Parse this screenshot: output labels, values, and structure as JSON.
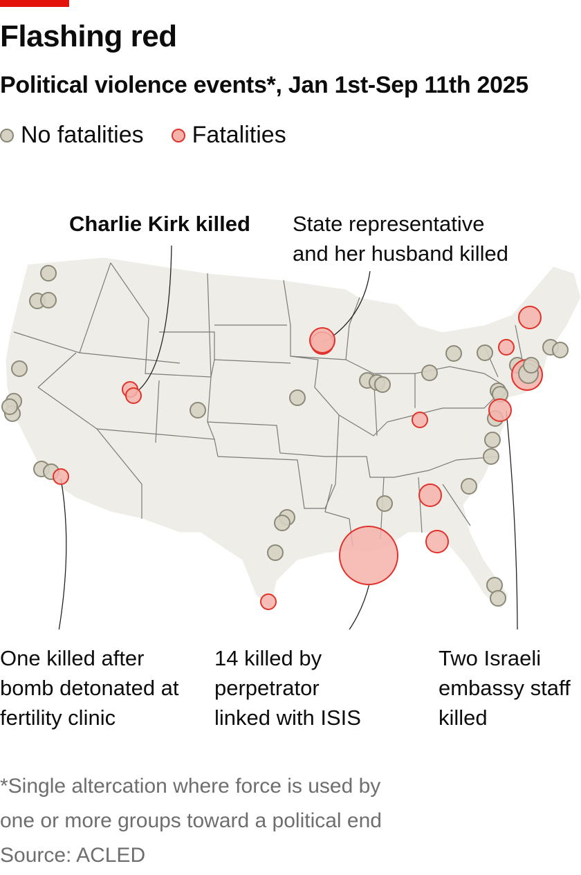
{
  "header": {
    "title": "Flashing red",
    "subtitle": "Political violence events*, Jan 1st-Sep 11th 2025"
  },
  "legend": {
    "no_fatalities": "No fatalities",
    "fatalities": "Fatalities"
  },
  "colors": {
    "accent": "#e3120b",
    "no_fatalities_fill": "#d5d1c3",
    "no_fatalities_stroke": "#8b8878",
    "fatalities_fill": "#f5b3aa",
    "fatalities_stroke": "#e0322b",
    "land": "#efede7",
    "borders": "#7a7a7a"
  },
  "annotations": {
    "charlie_kirk": "Charlie Kirk killed",
    "state_rep": "State representative\nand her husband killed",
    "fertility_clinic": "One killed after\nbomb detonated at\nfertility clinic",
    "isis": "14 killed by\nperpetrator\nlinked with ISIS",
    "israeli_embassy": "Two Israeli\nembassy staff\nkilled"
  },
  "footnote": "*Single altercation where force is used by\none or more groups toward a political end\nSource: ACLED"
}
